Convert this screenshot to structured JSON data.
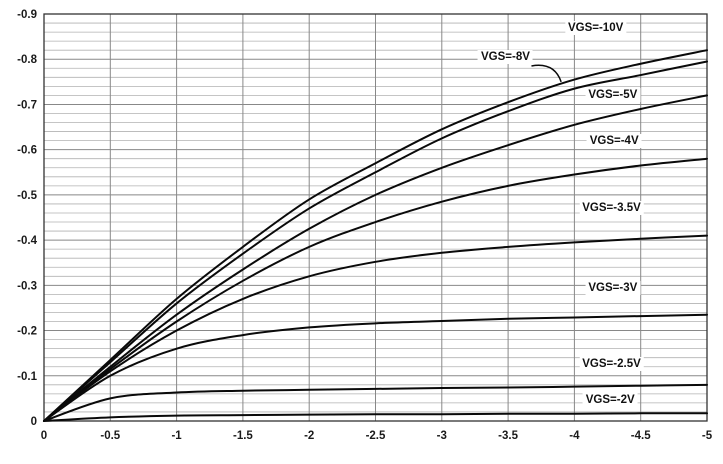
{
  "chart_data": {
    "type": "line",
    "title": "",
    "xlabel": "",
    "ylabel": "",
    "xlim": [
      0,
      -5
    ],
    "ylim": [
      0,
      -0.9
    ],
    "x_ticks": [
      "0",
      "-0.5",
      "-1",
      "-1.5",
      "-2",
      "-2.5",
      "-3",
      "-3.5",
      "-4",
      "-4.5",
      "-5"
    ],
    "y_ticks": [
      "0",
      "-0.1",
      "-0.2",
      "-0.3",
      "-0.4",
      "-0.5",
      "-0.6",
      "-0.7",
      "-0.8",
      "-0.9"
    ],
    "grid": {
      "x_major_step": 0.5,
      "y_major_step": 0.1,
      "y_minor_step": 0.02,
      "grid_on": true
    },
    "legend_position": "none",
    "x_samples": [
      0,
      -0.5,
      -1,
      -1.5,
      -2,
      -2.5,
      -3,
      -3.5,
      -4,
      -4.5,
      -5
    ],
    "series": [
      {
        "name": "VGS=-10V",
        "values": [
          0,
          -0.135,
          -0.27,
          -0.385,
          -0.49,
          -0.57,
          -0.645,
          -0.705,
          -0.755,
          -0.79,
          -0.82
        ]
      },
      {
        "name": "VGS=-8V",
        "values": [
          0,
          -0.13,
          -0.26,
          -0.37,
          -0.47,
          -0.55,
          -0.625,
          -0.685,
          -0.735,
          -0.765,
          -0.795
        ]
      },
      {
        "name": "VGS=-5V",
        "values": [
          0,
          -0.12,
          -0.235,
          -0.335,
          -0.425,
          -0.5,
          -0.56,
          -0.61,
          -0.655,
          -0.69,
          -0.72
        ]
      },
      {
        "name": "VGS=-4V",
        "values": [
          0,
          -0.115,
          -0.22,
          -0.31,
          -0.385,
          -0.44,
          -0.485,
          -0.52,
          -0.545,
          -0.565,
          -0.58
        ]
      },
      {
        "name": "VGS=-3.5V",
        "values": [
          0,
          -0.11,
          -0.2,
          -0.27,
          -0.32,
          -0.352,
          -0.372,
          -0.385,
          -0.395,
          -0.403,
          -0.41
        ]
      },
      {
        "name": "VGS=-3V",
        "values": [
          0,
          -0.1,
          -0.16,
          -0.19,
          -0.207,
          -0.216,
          -0.221,
          -0.226,
          -0.229,
          -0.232,
          -0.235
        ]
      },
      {
        "name": "VGS=-2.5V",
        "values": [
          0,
          -0.05,
          -0.063,
          -0.067,
          -0.069,
          -0.071,
          -0.073,
          -0.074,
          -0.076,
          -0.078,
          -0.08
        ]
      },
      {
        "name": "VGS=-2V",
        "values": [
          0,
          -0.008,
          -0.012,
          -0.013,
          -0.014,
          -0.015,
          -0.015,
          -0.016,
          -0.016,
          -0.017,
          -0.017
        ]
      }
    ],
    "annotations": [
      {
        "label": "VGS=-10V",
        "x": -4.16,
        "y": -0.869
      },
      {
        "label": "VGS=-8V",
        "x": -3.48,
        "y": -0.805,
        "leader_to": {
          "x": -3.9,
          "y": -0.75
        }
      },
      {
        "label": "VGS=-5V",
        "x": -4.29,
        "y": -0.72
      },
      {
        "label": "VGS=-4V",
        "x": -4.3,
        "y": -0.62
      },
      {
        "label": "VGS=-3.5V",
        "x": -4.28,
        "y": -0.47
      },
      {
        "label": "VGS=-3V",
        "x": -4.29,
        "y": -0.295
      },
      {
        "label": "VGS=-2.5V",
        "x": -4.28,
        "y": -0.125
      },
      {
        "label": "VGS=-2V",
        "x": -4.27,
        "y": -0.046
      }
    ],
    "colors": {
      "curve": "#0a0a0a",
      "grid_major": "#888888",
      "grid_minor": "#b2b2b2",
      "border": "#333333",
      "text": "#1a1a1a",
      "background": "#ffffff"
    }
  }
}
